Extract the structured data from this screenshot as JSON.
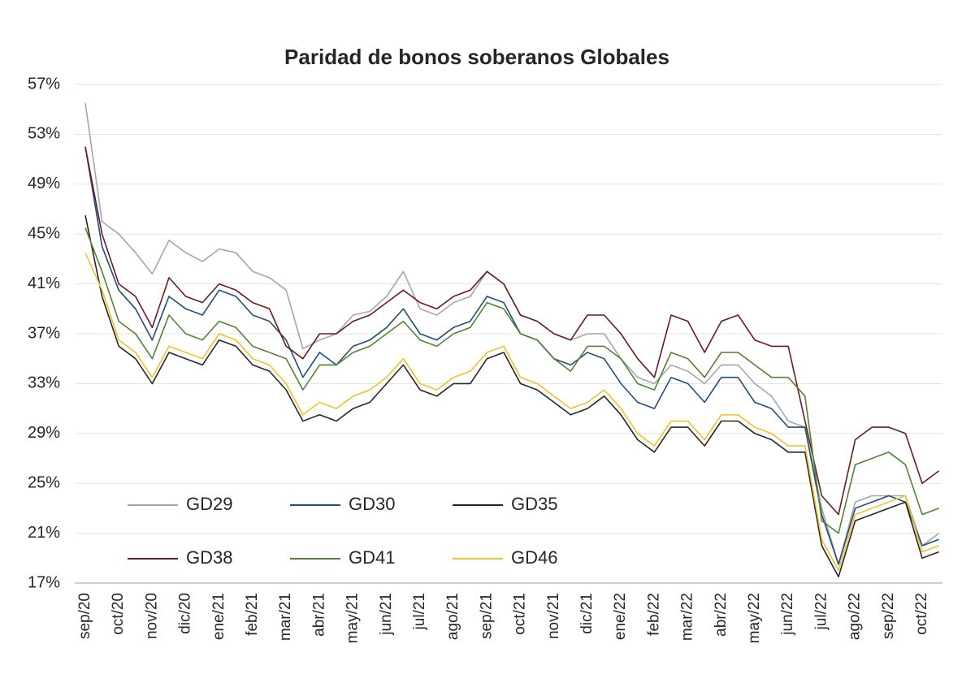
{
  "chart_data": {
    "type": "line",
    "title": "Paridad de bonos soberanos Globales",
    "categories": [
      "sep/20",
      null,
      "oct/20",
      null,
      "nov/20",
      null,
      "dic/20",
      null,
      "ene/21",
      null,
      "feb/21",
      null,
      "mar/21",
      null,
      "abr/21",
      null,
      "may/21",
      null,
      "jun/21",
      null,
      "jul/21",
      null,
      "ago/21",
      null,
      "sep/21",
      null,
      "oct/21",
      null,
      "nov/21",
      null,
      "dic/21",
      null,
      "ene/22",
      null,
      "feb/22",
      null,
      "mar/22",
      null,
      "abr/22",
      null,
      "may/22",
      null,
      "jun/22",
      null,
      "jul/22",
      null,
      "ago/22",
      null,
      "sep/22",
      null,
      "oct/22",
      null
    ],
    "series": [
      {
        "name": "GD29",
        "color": "#a6a6a6",
        "values": [
          55.5,
          46,
          45,
          43.5,
          41.8,
          44.5,
          43.5,
          42.8,
          43.8,
          43.5,
          42,
          41.5,
          40.5,
          35.8,
          36.5,
          37,
          38.5,
          38.8,
          40,
          42,
          39,
          38.5,
          39.5,
          40,
          42,
          41,
          38.5,
          38,
          37,
          36.5,
          37,
          37,
          35,
          33.5,
          33,
          34.5,
          34,
          33,
          34.5,
          34.5,
          33,
          32,
          30,
          29.5,
          23,
          18.5,
          23.5,
          24,
          24,
          24,
          20,
          21
        ]
      },
      {
        "name": "GD30",
        "color": "#1f4e79",
        "values": [
          52,
          44,
          40.5,
          39,
          36.5,
          40,
          39,
          38.5,
          40.5,
          40,
          38.5,
          38,
          36.5,
          33.5,
          35.5,
          34.5,
          36,
          36.5,
          37.5,
          39,
          37,
          36.5,
          37.5,
          38,
          40,
          39.5,
          37,
          36.5,
          35,
          34.5,
          35.5,
          35,
          33,
          31.5,
          31,
          33.5,
          33,
          31.5,
          33.5,
          33.5,
          31.5,
          31,
          29.5,
          29.5,
          22.5,
          18.5,
          23,
          23.5,
          24,
          23.5,
          20,
          20.5
        ]
      },
      {
        "name": "GD35",
        "color": "#262626",
        "values": [
          46.5,
          40,
          36,
          35,
          33,
          35.5,
          35,
          34.5,
          36.5,
          36,
          34.5,
          34,
          32.5,
          30,
          30.5,
          30,
          31,
          31.5,
          33,
          34.5,
          32.5,
          32,
          33,
          33,
          35,
          35.5,
          33,
          32.5,
          31.5,
          30.5,
          31,
          32,
          30.5,
          28.5,
          27.5,
          29.5,
          29.5,
          28,
          30,
          30,
          29,
          28.5,
          27.5,
          27.5,
          20,
          17.5,
          22,
          22.5,
          23,
          23.5,
          19,
          19.5
        ]
      },
      {
        "name": "GD38",
        "color": "#6b1a24",
        "values": [
          52,
          45,
          41,
          40,
          37.5,
          41.5,
          40,
          39.5,
          41,
          40.5,
          39.5,
          39,
          36,
          35,
          37,
          37,
          38,
          38.5,
          39.5,
          40.5,
          39.5,
          39,
          40,
          40.5,
          42,
          41,
          38.5,
          38,
          37,
          36.5,
          38.5,
          38.5,
          37,
          35,
          33.5,
          38.5,
          38,
          35.5,
          38,
          38.5,
          36.5,
          36,
          36,
          30,
          24,
          22.5,
          28.5,
          29.5,
          29.5,
          29,
          25,
          26
        ]
      },
      {
        "name": "GD41",
        "color": "#548235",
        "values": [
          45.5,
          42,
          38,
          37,
          35,
          38.5,
          37,
          36.5,
          38,
          37.5,
          36,
          35.5,
          35,
          32.5,
          34.5,
          34.5,
          35.5,
          36,
          37,
          38,
          36.5,
          36,
          37,
          37.5,
          39.5,
          39,
          37,
          36.5,
          35,
          34,
          36,
          36,
          35,
          33,
          32.5,
          35.5,
          35,
          33.5,
          35.5,
          35.5,
          34.5,
          33.5,
          33.5,
          32,
          22,
          21,
          26.5,
          27,
          27.5,
          26.5,
          22.5,
          23
        ]
      },
      {
        "name": "GD46",
        "color": "#f2c12e",
        "values": [
          43.5,
          40.5,
          36.5,
          35.5,
          33.5,
          36,
          35.5,
          35,
          37,
          36.5,
          35,
          34.5,
          33,
          30.5,
          31.5,
          31,
          32,
          32.5,
          33.5,
          35,
          33,
          32.5,
          33.5,
          34,
          35.5,
          36,
          33.5,
          33,
          32,
          31,
          31.5,
          32.5,
          31,
          29,
          28,
          30,
          30,
          28.5,
          30.5,
          30.5,
          29.5,
          29,
          28,
          28,
          20.5,
          18,
          22.5,
          23,
          23.5,
          24,
          19.5,
          20
        ]
      }
    ],
    "ylim": [
      17,
      57
    ],
    "yticks": [
      {
        "value": 17,
        "label": "17%"
      },
      {
        "value": 21,
        "label": "21%"
      },
      {
        "value": 25,
        "label": "25%"
      },
      {
        "value": 29,
        "label": "29%"
      },
      {
        "value": 33,
        "label": "33%"
      },
      {
        "value": 37,
        "label": "37%"
      },
      {
        "value": 41,
        "label": "41%"
      },
      {
        "value": 45,
        "label": "45%"
      },
      {
        "value": 49,
        "label": "49%"
      },
      {
        "value": 53,
        "label": "53%"
      },
      {
        "value": 57,
        "label": "57%"
      }
    ],
    "grid": true,
    "legend": "lower left"
  }
}
